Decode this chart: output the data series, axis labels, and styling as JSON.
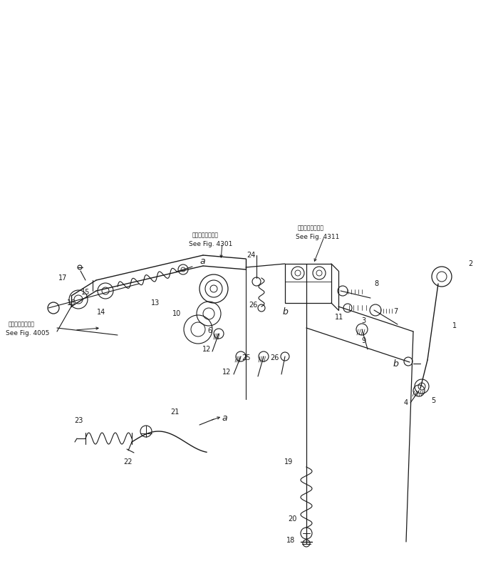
{
  "bg_color": "#ffffff",
  "line_color": "#1a1a1a",
  "fig_width": 7.06,
  "fig_height": 8.22,
  "dpi": 100,
  "note_4301": {
    "ja": "第４３０１図参照",
    "en": "See Fig. 4301"
  },
  "note_4311": {
    "ja": "第４３１１図参照",
    "en": "See Fig. 4311"
  },
  "note_4005": {
    "ja": "第４００５図参照",
    "en": "See Fig. 4005"
  }
}
